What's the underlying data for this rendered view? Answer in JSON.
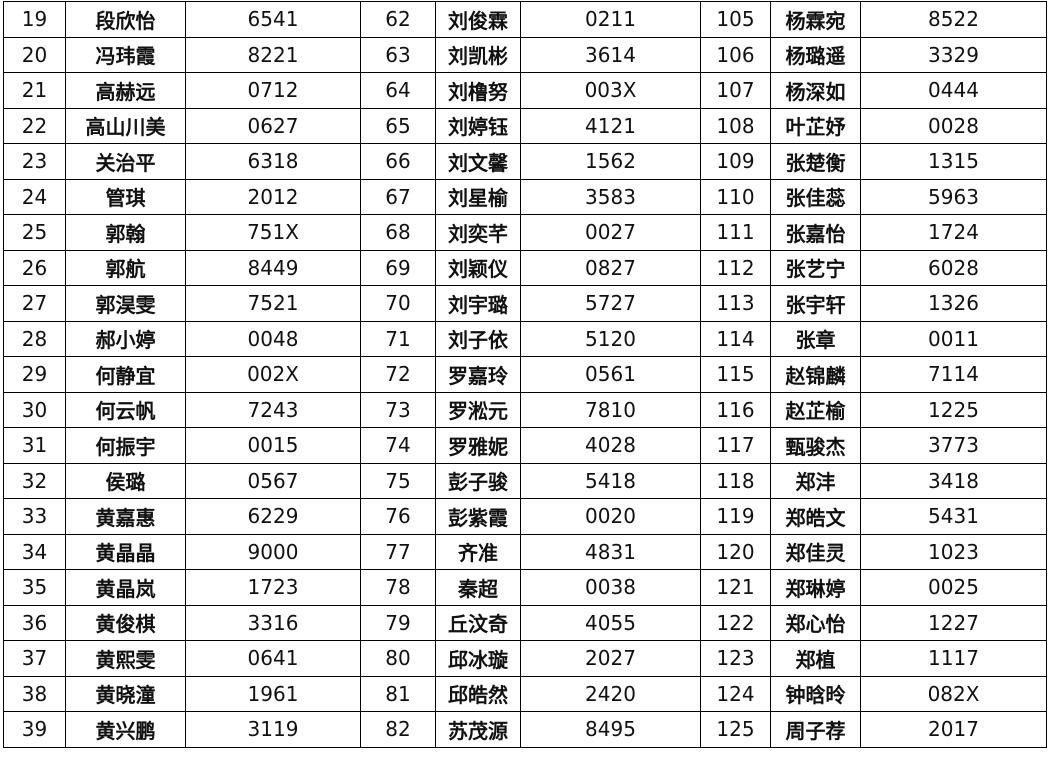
{
  "rows": [
    [
      [
        "19",
        "段欣怡",
        "6541"
      ],
      [
        "62",
        "刘俊霖",
        "0211"
      ],
      [
        "105",
        "杨霖宛",
        "8522"
      ]
    ],
    [
      [
        "20",
        "冯玮霞",
        "8221"
      ],
      [
        "63",
        "刘凯彬",
        "3614"
      ],
      [
        "106",
        "杨璐遥",
        "3329"
      ]
    ],
    [
      [
        "21",
        "高赫远",
        "0712"
      ],
      [
        "64",
        "刘橹努",
        "003X"
      ],
      [
        "107",
        "杨深如",
        "0444"
      ]
    ],
    [
      [
        "22",
        "高山川美",
        "0627"
      ],
      [
        "65",
        "刘婷钰",
        "4121"
      ],
      [
        "108",
        "叶芷妤",
        "0028"
      ]
    ],
    [
      [
        "23",
        "关治平",
        "6318"
      ],
      [
        "66",
        "刘文馨",
        "1562"
      ],
      [
        "109",
        "张楚衡",
        "1315"
      ]
    ],
    [
      [
        "24",
        "管琪",
        "2012"
      ],
      [
        "67",
        "刘星榆",
        "3583"
      ],
      [
        "110",
        "张佳蕊",
        "5963"
      ]
    ],
    [
      [
        "25",
        "郭翰",
        "751X"
      ],
      [
        "68",
        "刘奕芊",
        "0027"
      ],
      [
        "111",
        "张嘉怡",
        "1724"
      ]
    ],
    [
      [
        "26",
        "郭航",
        "8449"
      ],
      [
        "69",
        "刘颖仪",
        "0827"
      ],
      [
        "112",
        "张艺宁",
        "6028"
      ]
    ],
    [
      [
        "27",
        "郭淏雯",
        "7521"
      ],
      [
        "70",
        "刘宇璐",
        "5727"
      ],
      [
        "113",
        "张宇轩",
        "1326"
      ]
    ],
    [
      [
        "28",
        "郝小婷",
        "0048"
      ],
      [
        "71",
        "刘子依",
        "5120"
      ],
      [
        "114",
        "张章",
        "0011"
      ]
    ],
    [
      [
        "29",
        "何静宜",
        "002X"
      ],
      [
        "72",
        "罗嘉玲",
        "0561"
      ],
      [
        "115",
        "赵锦麟",
        "7114"
      ]
    ],
    [
      [
        "30",
        "何云帆",
        "7243"
      ],
      [
        "73",
        "罗淞元",
        "7810"
      ],
      [
        "116",
        "赵芷榆",
        "1225"
      ]
    ],
    [
      [
        "31",
        "何振宇",
        "0015"
      ],
      [
        "74",
        "罗雅妮",
        "4028"
      ],
      [
        "117",
        "甄骏杰",
        "3773"
      ]
    ],
    [
      [
        "32",
        "侯璐",
        "0567"
      ],
      [
        "75",
        "彭子骏",
        "5418"
      ],
      [
        "118",
        "郑沣",
        "3418"
      ]
    ],
    [
      [
        "33",
        "黄嘉惠",
        "6229"
      ],
      [
        "76",
        "彭紫霞",
        "0020"
      ],
      [
        "119",
        "郑皓文",
        "5431"
      ]
    ],
    [
      [
        "34",
        "黄晶晶",
        "9000"
      ],
      [
        "77",
        "齐准",
        "4831"
      ],
      [
        "120",
        "郑佳灵",
        "1023"
      ]
    ],
    [
      [
        "35",
        "黄晶岚",
        "1723"
      ],
      [
        "78",
        "秦超",
        "0038"
      ],
      [
        "121",
        "郑琳婷",
        "0025"
      ]
    ],
    [
      [
        "36",
        "黄俊棋",
        "3316"
      ],
      [
        "79",
        "丘汶奇",
        "4055"
      ],
      [
        "122",
        "郑心怡",
        "1227"
      ]
    ],
    [
      [
        "37",
        "黄熙雯",
        "0641"
      ],
      [
        "80",
        "邱冰璇",
        "2027"
      ],
      [
        "123",
        "郑植",
        "1117"
      ]
    ],
    [
      [
        "38",
        "黄晓潼",
        "1961"
      ],
      [
        "81",
        "邱皓然",
        "2420"
      ],
      [
        "124",
        "钟晗昤",
        "082X"
      ]
    ],
    [
      [
        "39",
        "黄兴鹏",
        "3119"
      ],
      [
        "82",
        "苏茂源",
        "8495"
      ],
      [
        "125",
        "周子荐",
        "2017"
      ]
    ]
  ]
}
